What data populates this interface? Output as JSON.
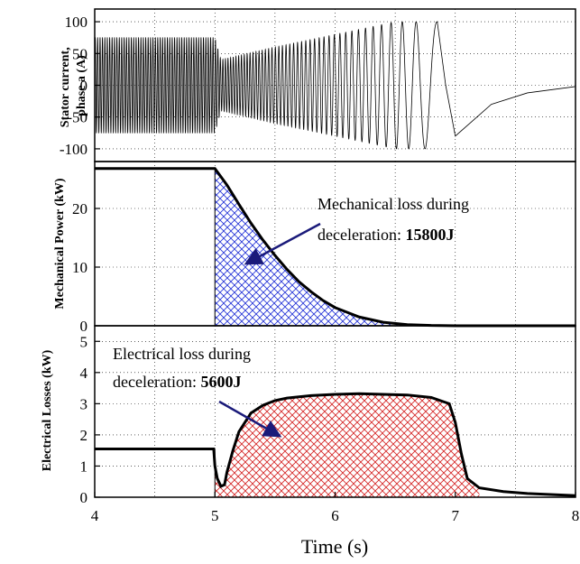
{
  "chart_data": [
    {
      "type": "line",
      "ylabel": [
        "Stator current,",
        "phase a (A)"
      ],
      "xlim": [
        4,
        8
      ],
      "ylim": [
        -120,
        120
      ],
      "yticks": [
        -100,
        -50,
        0,
        50,
        100
      ],
      "grid": true,
      "series": [
        {
          "description_points": [
            {
              "t": 4.0,
              "amplitude": 75,
              "freq_hz": 50
            },
            {
              "t": 5.0,
              "amplitude": 75,
              "freq_hz": 50
            },
            {
              "t": 5.05,
              "amplitude": 40,
              "freq_hz": 48
            },
            {
              "t": 5.5,
              "amplitude": 60,
              "freq_hz": 35
            },
            {
              "t": 6.0,
              "amplitude": 80,
              "freq_hz": 22
            },
            {
              "t": 6.5,
              "amplitude": 100,
              "freq_hz": 11
            },
            {
              "t": 6.85,
              "amplitude": 100,
              "freq_hz": 4
            }
          ],
          "tail": [
            [
              7.0,
              -80
            ],
            [
              7.3,
              -30
            ],
            [
              7.6,
              -12
            ],
            [
              8.0,
              -2
            ]
          ]
        }
      ]
    },
    {
      "type": "area",
      "ylabel": "Mechanical Power (kW)",
      "xlim": [
        4,
        8
      ],
      "ylim": [
        0,
        28
      ],
      "yticks": [
        0,
        10,
        20
      ],
      "grid": true,
      "fill_color": "#1f2fd6",
      "x": [
        4.0,
        5.0,
        5.1,
        5.2,
        5.3,
        5.4,
        5.5,
        5.6,
        5.7,
        5.8,
        5.9,
        6.0,
        6.2,
        6.4,
        6.6,
        6.8,
        7.0,
        8.0
      ],
      "values": [
        26.8,
        26.8,
        24.0,
        20.7,
        17.5,
        14.6,
        12.0,
        9.6,
        7.5,
        5.8,
        4.3,
        3.1,
        1.5,
        0.6,
        0.2,
        0.05,
        0,
        0
      ],
      "annotation": {
        "line1": "Mechanical loss during",
        "line2": "deceleration: ",
        "bold": "15800J"
      }
    },
    {
      "type": "area",
      "ylabel": "Electrical Losses (kW)",
      "xlabel": "Time (s)",
      "xlim": [
        4,
        8
      ],
      "ylim": [
        0,
        5.5
      ],
      "yticks": [
        0,
        1,
        2,
        3,
        4,
        5
      ],
      "xticks": [
        4,
        5,
        6,
        7,
        8
      ],
      "grid": true,
      "fill_color": "#d42020",
      "x": [
        4.0,
        4.99,
        5.0,
        5.02,
        5.05,
        5.08,
        5.1,
        5.15,
        5.2,
        5.3,
        5.4,
        5.5,
        5.6,
        5.8,
        6.0,
        6.2,
        6.4,
        6.6,
        6.8,
        6.95,
        7.0,
        7.05,
        7.1,
        7.2,
        7.4,
        7.6,
        8.0
      ],
      "values": [
        1.55,
        1.55,
        1.0,
        0.6,
        0.35,
        0.4,
        0.8,
        1.5,
        2.1,
        2.7,
        2.95,
        3.1,
        3.18,
        3.26,
        3.3,
        3.32,
        3.3,
        3.28,
        3.2,
        3.0,
        2.4,
        1.4,
        0.6,
        0.3,
        0.18,
        0.12,
        0.05
      ],
      "annotation": {
        "line1": "Electrical loss during",
        "line2": "deceleration: ",
        "bold": "5600J"
      }
    }
  ]
}
